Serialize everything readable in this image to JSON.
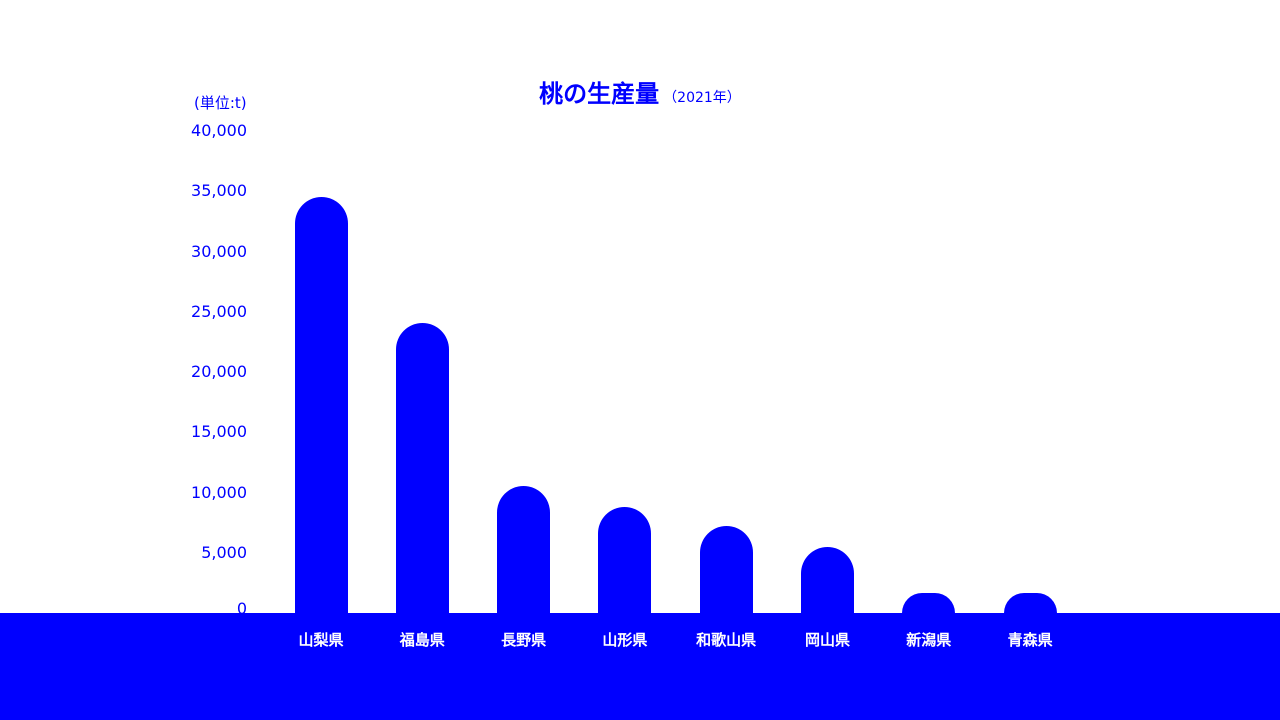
{
  "chart_data": {
    "type": "bar",
    "title": "桃の生産量",
    "subtitle": "（2021年）",
    "unit_label": "(単位:t)",
    "categories": [
      "山梨県",
      "福島県",
      "長野県",
      "山形県",
      "和歌山県",
      "岡山県",
      "新潟県",
      "青森県"
    ],
    "values": [
      34500,
      24100,
      10500,
      8800,
      7200,
      5500,
      1700,
      1700
    ],
    "ylim": [
      0,
      40000
    ],
    "yticks": [
      "40,000",
      "35,000",
      "30,000",
      "25,000",
      "20,000",
      "15,000",
      "10,000",
      "5,000",
      "0"
    ],
    "ytick_values": [
      40000,
      35000,
      30000,
      25000,
      20000,
      15000,
      10000,
      5000,
      0
    ],
    "grid": false,
    "bar_color": "#0000ff",
    "band_color": "#0000ff",
    "label_color": "#ffffff"
  }
}
